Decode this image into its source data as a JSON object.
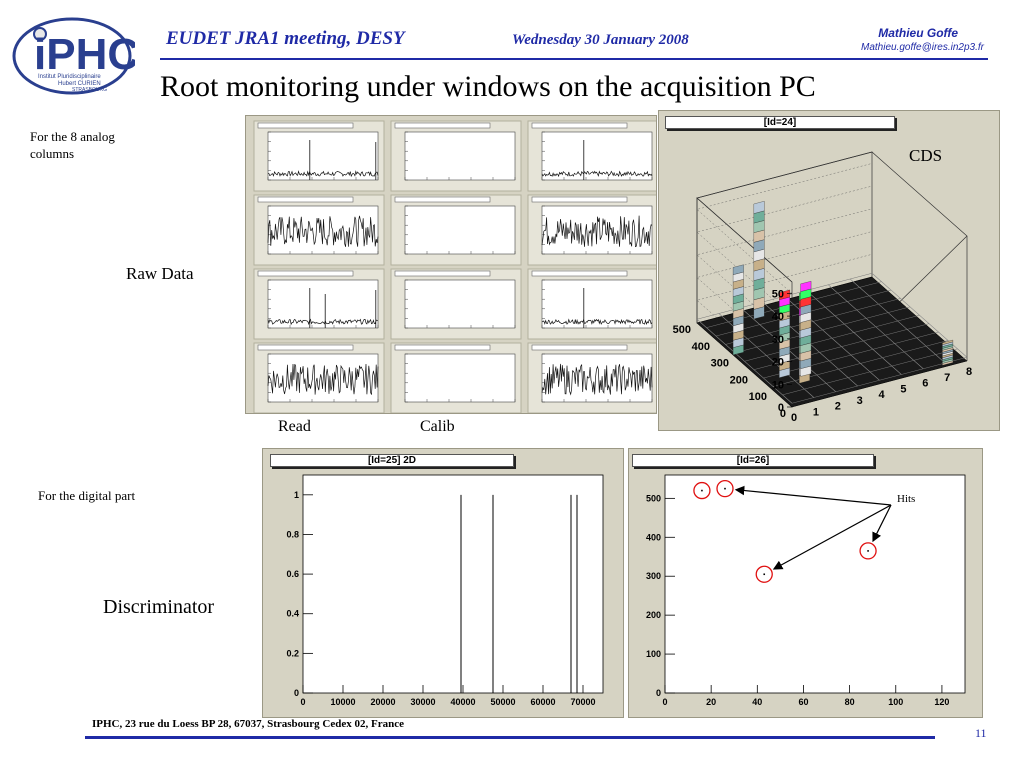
{
  "header": {
    "meeting": "EUDET JRA1 meeting, DESY",
    "date": "Wednesday 30 January 2008",
    "author": "Mathieu Goffe",
    "email": "Mathieu.goffe@ires.in2p3.fr"
  },
  "logo": {
    "text": "iPHC",
    "sub1": "Institut Pluridisciplinaire",
    "sub2": "Hubert CURIEN",
    "sub3": "STRASBOURG"
  },
  "title": "Root monitoring under windows on the acquisition PC",
  "labels": {
    "analog": "For the 8 analog columns",
    "raw_data": "Raw Data",
    "read": "Read",
    "calib": "Calib",
    "cds": "CDS",
    "digital": "For the digital part",
    "discriminator": "Discriminator",
    "hits": "Hits"
  },
  "panels": {
    "cds_title": "[Id=24]",
    "disc_title": "[Id=25] 2D",
    "hits_title": "[Id=26]"
  },
  "lego_axes": {
    "z_ticks": [
      "0",
      "10",
      "20",
      "30",
      "40",
      "50"
    ],
    "y_ticks": [
      "0",
      "100",
      "200",
      "300",
      "400",
      "500"
    ],
    "x_ticks": [
      "0",
      "1",
      "2",
      "3",
      "4",
      "5",
      "6",
      "7",
      "8"
    ]
  },
  "chart_data": [
    {
      "type": "bar",
      "title": "[Id=25] 2D",
      "xlabel": "",
      "ylabel": "",
      "xlim": [
        0,
        75000
      ],
      "ylim": [
        0,
        1.1
      ],
      "x_ticks": [
        "0",
        "10000",
        "20000",
        "30000",
        "40000",
        "50000",
        "60000",
        "70000"
      ],
      "y_ticks": [
        "0",
        "0.2",
        "0.4",
        "0.6",
        "0.8",
        "1"
      ],
      "x": [
        39500,
        47500,
        67000,
        68500
      ],
      "values": [
        1,
        1,
        1,
        1
      ]
    },
    {
      "type": "scatter",
      "title": "[Id=26]",
      "xlabel": "",
      "ylabel": "",
      "xlim": [
        0,
        130
      ],
      "ylim": [
        0,
        560
      ],
      "x_ticks": [
        "0",
        "20",
        "40",
        "60",
        "80",
        "100",
        "120"
      ],
      "y_ticks": [
        "0",
        "100",
        "200",
        "300",
        "400",
        "500"
      ],
      "x": [
        16,
        26,
        43,
        88
      ],
      "y": [
        520,
        525,
        305,
        365
      ]
    }
  ],
  "footer": "IPHC, 23 rue du Loess BP 28, 67037, Strasbourg Cedex 02, France",
  "page_number": "11"
}
